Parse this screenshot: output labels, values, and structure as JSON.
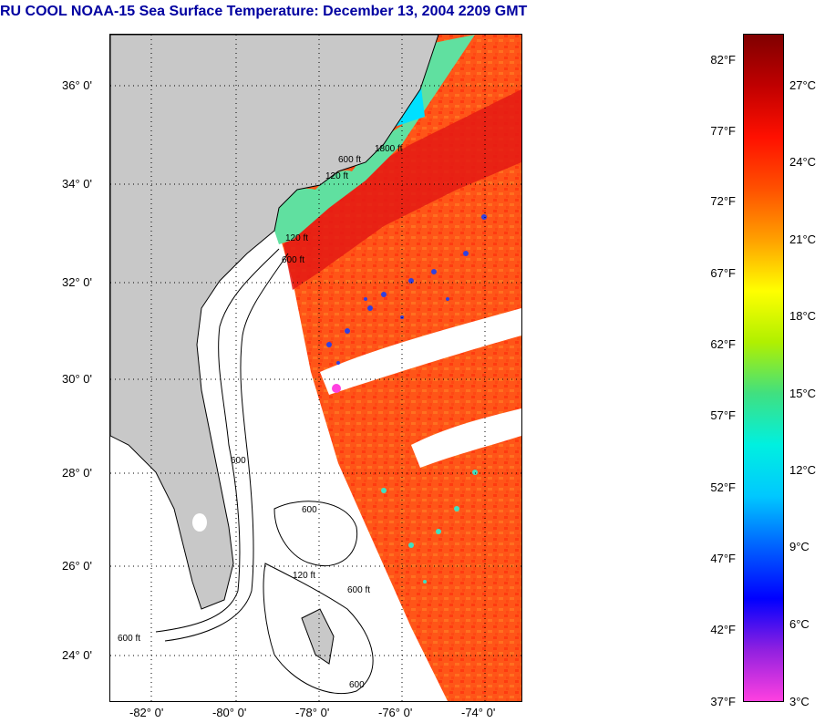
{
  "title": "RU COOL  NOAA-15  Sea Surface Temperature:  December 13, 2004 2209 GMT",
  "map": {
    "lat_labels": [
      "36° 0'",
      "34° 0'",
      "32° 0'",
      "30° 0'",
      "28° 0'",
      "26° 0'",
      "24° 0'"
    ],
    "lon_labels": [
      "-82° 0'",
      "-80° 0'",
      "-78° 0'",
      "-76° 0'",
      "-74° 0'"
    ],
    "contour_labels": [
      "120 ft",
      "600 ft",
      "1800 ft",
      "120 ft",
      "600 ft",
      "600",
      "120 ft",
      "600 ft",
      "600 ft",
      "600",
      "600"
    ],
    "colors": {
      "land": "#c8c8c8",
      "no_data": "#ffffff",
      "warm_water": "#ff5a14",
      "gulf_stream": "#e41a14"
    }
  },
  "colorbar": {
    "fahrenheit_labels": [
      "82°F",
      "77°F",
      "72°F",
      "67°F",
      "62°F",
      "57°F",
      "52°F",
      "47°F",
      "42°F",
      "37°F"
    ],
    "celsius_labels": [
      "27°C",
      "24°C",
      "21°C",
      "18°C",
      "15°C",
      "12°C",
      "9°C",
      "6°C",
      "3°C"
    ],
    "colors": [
      "#ff40e0",
      "#9020e0",
      "#0000ff",
      "#0060ff",
      "#00c8ff",
      "#00f0e0",
      "#40e080",
      "#b0f000",
      "#ffff00",
      "#ffa000",
      "#ff5000",
      "#ff1000",
      "#c00000",
      "#800000"
    ]
  }
}
